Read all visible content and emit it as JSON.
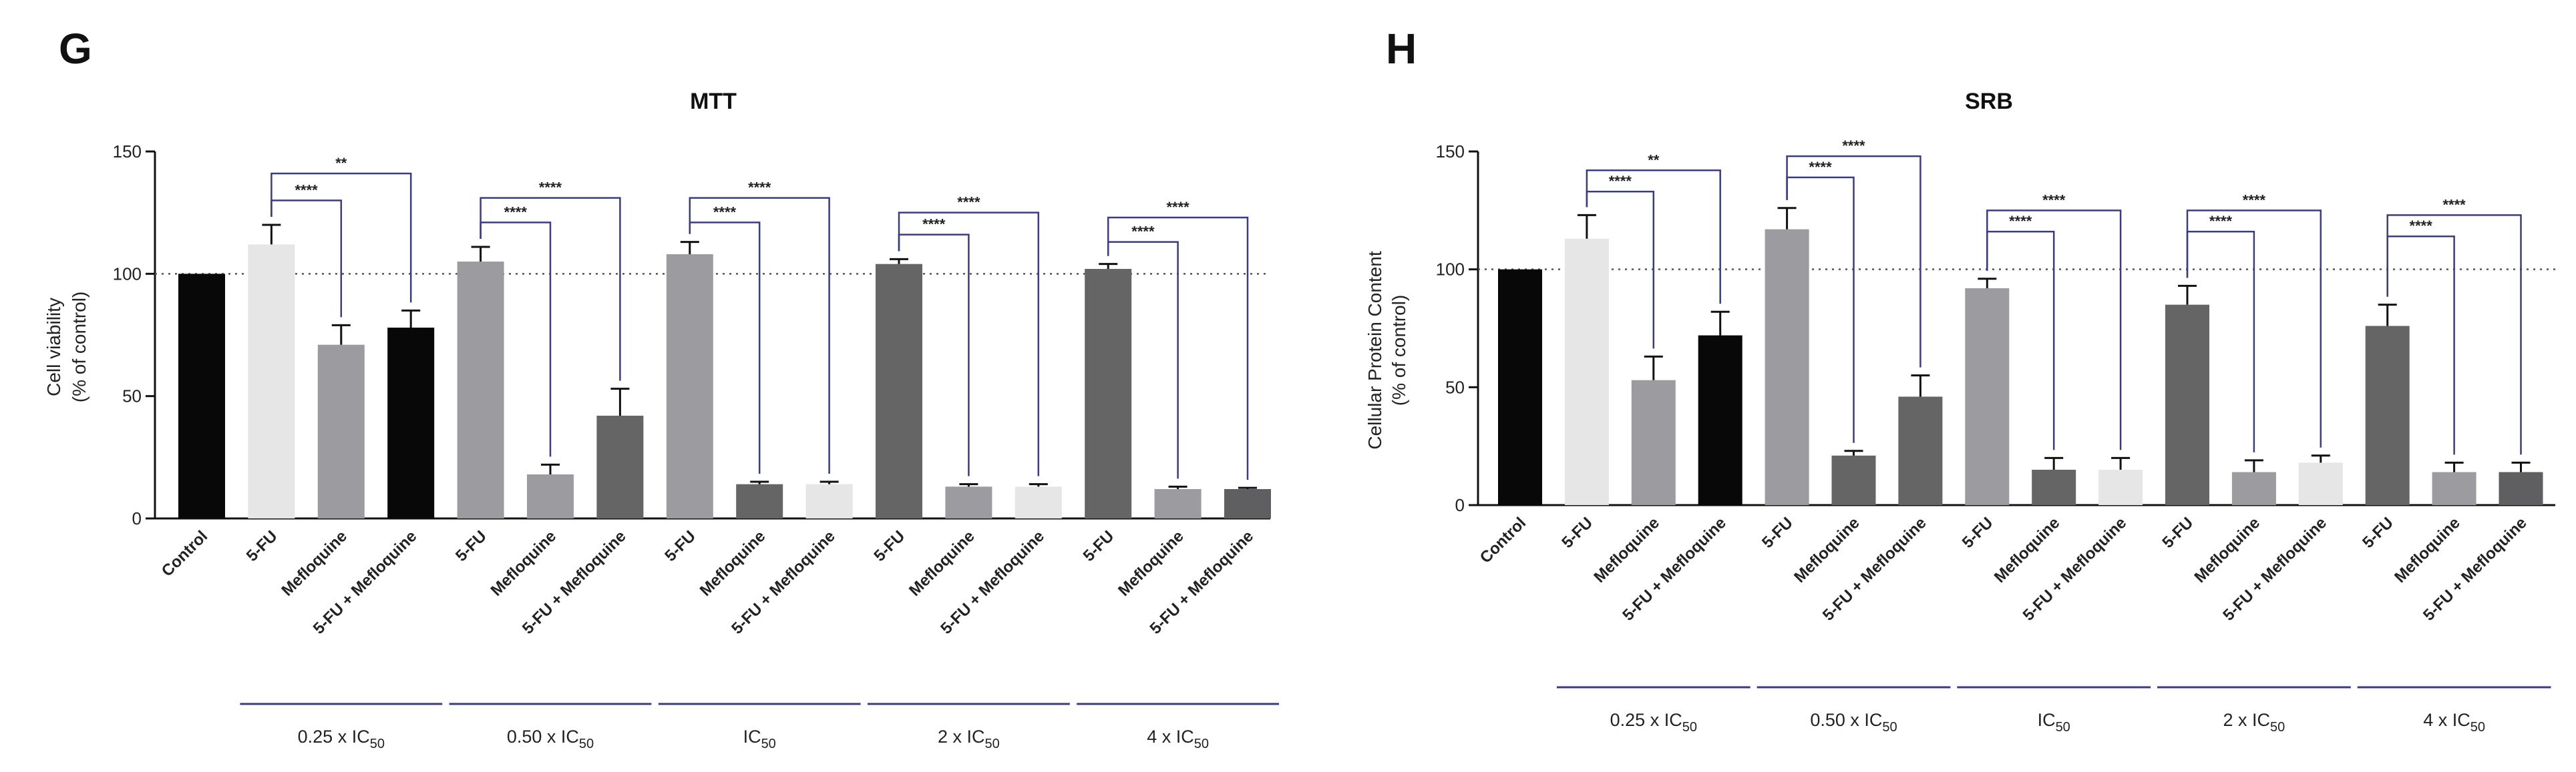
{
  "colors": {
    "black": "#080808",
    "light": "#e6e6e6",
    "mid": "#9b9ba0",
    "dark": "#656566",
    "dark2": "#5f5f61",
    "bracket": "#3a3c82",
    "group_line": "#3a3c82"
  },
  "chart_data": [
    {
      "panel": "G",
      "type": "bar",
      "title": "MTT",
      "ylabel_line1": "Cell viability",
      "ylabel_line2": "(% of control)",
      "ylim": [
        0,
        150
      ],
      "yticks": [
        0,
        50,
        100,
        150
      ],
      "reference_line": 100,
      "bars": [
        {
          "label": "Control",
          "value": 100,
          "error": 0,
          "color": "black"
        },
        {
          "label": "5-FU",
          "value": 112,
          "error": 8,
          "color": "light"
        },
        {
          "label": "Mefloquine",
          "value": 71,
          "error": 8,
          "color": "mid"
        },
        {
          "label": "5-FU + Mefloquine",
          "value": 78,
          "error": 7,
          "color": "black"
        },
        {
          "label": "5-FU",
          "value": 105,
          "error": 6,
          "color": "mid"
        },
        {
          "label": "Mefloquine",
          "value": 18,
          "error": 4,
          "color": "mid"
        },
        {
          "label": "5-FU + Mefloquine",
          "value": 42,
          "error": 11,
          "color": "dark"
        },
        {
          "label": "5-FU",
          "value": 108,
          "error": 5,
          "color": "mid"
        },
        {
          "label": "Mefloquine",
          "value": 14,
          "error": 1,
          "color": "dark"
        },
        {
          "label": "5-FU + Mefloquine",
          "value": 14,
          "error": 1,
          "color": "light"
        },
        {
          "label": "5-FU",
          "value": 104,
          "error": 2,
          "color": "dark"
        },
        {
          "label": "Mefloquine",
          "value": 13,
          "error": 1,
          "color": "mid"
        },
        {
          "label": "5-FU + Mefloquine",
          "value": 13,
          "error": 1,
          "color": "light"
        },
        {
          "label": "5-FU",
          "value": 102,
          "error": 2,
          "color": "dark"
        },
        {
          "label": "Mefloquine",
          "value": 12,
          "error": 1,
          "color": "mid"
        },
        {
          "label": "5-FU + Mefloquine",
          "value": 12,
          "error": 0.5,
          "color": "dark2"
        }
      ],
      "groups": [
        {
          "label": "0.25 x IC",
          "sub": "50",
          "bars": [
            1,
            3
          ]
        },
        {
          "label": "0.50 x IC",
          "sub": "50",
          "bars": [
            4,
            6
          ]
        },
        {
          "label": "IC",
          "sub": "50",
          "bars": [
            7,
            9
          ]
        },
        {
          "label": "2 x IC",
          "sub": "50",
          "bars": [
            10,
            12
          ]
        },
        {
          "label": "4 x IC",
          "sub": "50",
          "bars": [
            13,
            15
          ]
        }
      ],
      "brackets": [
        {
          "from": 1,
          "to": 2,
          "label": "****",
          "level": 130
        },
        {
          "from": 1,
          "to": 3,
          "label": "**",
          "level": 141
        },
        {
          "from": 4,
          "to": 5,
          "label": "****",
          "level": 121
        },
        {
          "from": 4,
          "to": 6,
          "label": "****",
          "level": 131
        },
        {
          "from": 7,
          "to": 8,
          "label": "****",
          "level": 121
        },
        {
          "from": 7,
          "to": 9,
          "label": "****",
          "level": 131
        },
        {
          "from": 10,
          "to": 11,
          "label": "****",
          "level": 116
        },
        {
          "from": 10,
          "to": 12,
          "label": "****",
          "level": 125
        },
        {
          "from": 13,
          "to": 14,
          "label": "****",
          "level": 113
        },
        {
          "from": 13,
          "to": 15,
          "label": "****",
          "level": 123
        }
      ]
    },
    {
      "panel": "H",
      "type": "bar",
      "title": "SRB",
      "ylabel_line1": "Cellular Protein Content",
      "ylabel_line2": "(% of control)",
      "ylim": [
        0,
        150
      ],
      "yticks": [
        0,
        50,
        100,
        150
      ],
      "reference_line": 100,
      "bars": [
        {
          "label": "Control",
          "value": 100,
          "error": 0,
          "color": "black"
        },
        {
          "label": "5-FU",
          "value": 113,
          "error": 10,
          "color": "light"
        },
        {
          "label": "Mefloquine",
          "value": 53,
          "error": 10,
          "color": "mid"
        },
        {
          "label": "5-FU + Mefloquine",
          "value": 72,
          "error": 10,
          "color": "black"
        },
        {
          "label": "5-FU",
          "value": 117,
          "error": 9,
          "color": "mid"
        },
        {
          "label": "Mefloquine",
          "value": 21,
          "error": 2,
          "color": "dark"
        },
        {
          "label": "5-FU + Mefloquine",
          "value": 46,
          "error": 9,
          "color": "dark"
        },
        {
          "label": "5-FU",
          "value": 92,
          "error": 4,
          "color": "mid"
        },
        {
          "label": "Mefloquine",
          "value": 15,
          "error": 5,
          "color": "dark"
        },
        {
          "label": "5-FU + Mefloquine",
          "value": 15,
          "error": 5,
          "color": "light"
        },
        {
          "label": "5-FU",
          "value": 85,
          "error": 8,
          "color": "dark"
        },
        {
          "label": "Mefloquine",
          "value": 14,
          "error": 5,
          "color": "mid"
        },
        {
          "label": "5-FU + Mefloquine",
          "value": 18,
          "error": 3,
          "color": "light"
        },
        {
          "label": "5-FU",
          "value": 76,
          "error": 9,
          "color": "dark"
        },
        {
          "label": "Mefloquine",
          "value": 14,
          "error": 4,
          "color": "mid"
        },
        {
          "label": "5-FU + Mefloquine",
          "value": 14,
          "error": 4,
          "color": "dark2"
        }
      ],
      "groups": [
        {
          "label": "0.25 x IC",
          "sub": "50",
          "bars": [
            1,
            3
          ]
        },
        {
          "label": "0.50 x IC",
          "sub": "50",
          "bars": [
            4,
            6
          ]
        },
        {
          "label": "IC",
          "sub": "50",
          "bars": [
            7,
            9
          ]
        },
        {
          "label": "2 x IC",
          "sub": "50",
          "bars": [
            10,
            12
          ]
        },
        {
          "label": "4 x IC",
          "sub": "50",
          "bars": [
            13,
            15
          ]
        }
      ],
      "brackets": [
        {
          "from": 1,
          "to": 2,
          "label": "****",
          "level": 133
        },
        {
          "from": 1,
          "to": 3,
          "label": "**",
          "level": 142
        },
        {
          "from": 4,
          "to": 5,
          "label": "****",
          "level": 139
        },
        {
          "from": 4,
          "to": 6,
          "label": "****",
          "level": 148
        },
        {
          "from": 7,
          "to": 8,
          "label": "****",
          "level": 116
        },
        {
          "from": 7,
          "to": 9,
          "label": "****",
          "level": 125
        },
        {
          "from": 10,
          "to": 11,
          "label": "****",
          "level": 116
        },
        {
          "from": 10,
          "to": 12,
          "label": "****",
          "level": 125
        },
        {
          "from": 13,
          "to": 14,
          "label": "****",
          "level": 114
        },
        {
          "from": 13,
          "to": 15,
          "label": "****",
          "level": 123
        }
      ]
    }
  ]
}
